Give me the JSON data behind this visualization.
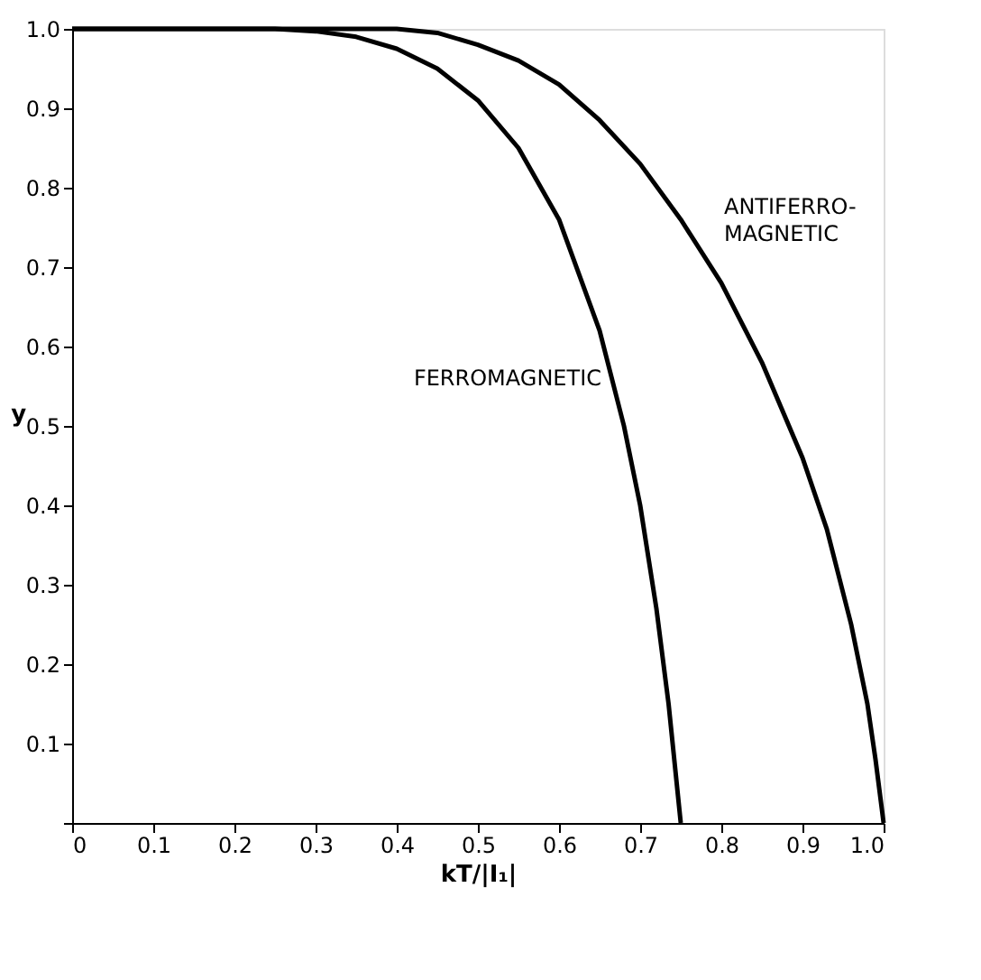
{
  "chart_data": {
    "type": "line",
    "xlabel": "kT/|I₁|",
    "ylabel": "y",
    "xlim": [
      0,
      1.0
    ],
    "ylim": [
      0,
      1.0
    ],
    "xticks": [
      {
        "value": 0,
        "label": "0"
      },
      0.1,
      0.2,
      0.3,
      0.4,
      0.5,
      0.6,
      0.7,
      0.8,
      0.9,
      {
        "value": 1.0,
        "label": "1.0"
      }
    ],
    "yticks": [
      {
        "value": 0,
        "label": null
      },
      0.1,
      0.2,
      0.3,
      0.4,
      0.5,
      0.6,
      0.7,
      0.8,
      0.9,
      {
        "value": 1.0,
        "label": "1.0"
      }
    ],
    "grid": false,
    "marker": "none",
    "line_style": "solid",
    "series": [
      {
        "color": "#000000",
        "x": [
          0,
          0.25,
          0.3,
          0.35,
          0.4,
          0.45,
          0.5,
          0.55,
          0.6,
          0.65,
          0.68,
          0.7,
          0.72,
          0.735,
          0.745,
          0.75
        ],
        "values": [
          1,
          1,
          0.997,
          0.99,
          0.975,
          0.95,
          0.91,
          0.85,
          0.76,
          0.62,
          0.5,
          0.4,
          0.27,
          0.15,
          0.05,
          0
        ]
      },
      {
        "color": "#000000",
        "x": [
          0,
          0.4,
          0.45,
          0.5,
          0.55,
          0.6,
          0.65,
          0.7,
          0.75,
          0.8,
          0.85,
          0.9,
          0.93,
          0.96,
          0.98,
          0.99,
          1.0
        ],
        "values": [
          1,
          1,
          0.995,
          0.98,
          0.96,
          0.93,
          0.885,
          0.83,
          0.76,
          0.68,
          0.58,
          0.46,
          0.37,
          0.25,
          0.15,
          0.08,
          0
        ]
      }
    ],
    "annotations": [
      {
        "text": "FERROMAGNETIC",
        "x": 0.67,
        "y": 0.56
      },
      {
        "text": "ANTIFERRO-\nMAGNETIC",
        "x": 0.75,
        "y": 0.76
      }
    ]
  }
}
